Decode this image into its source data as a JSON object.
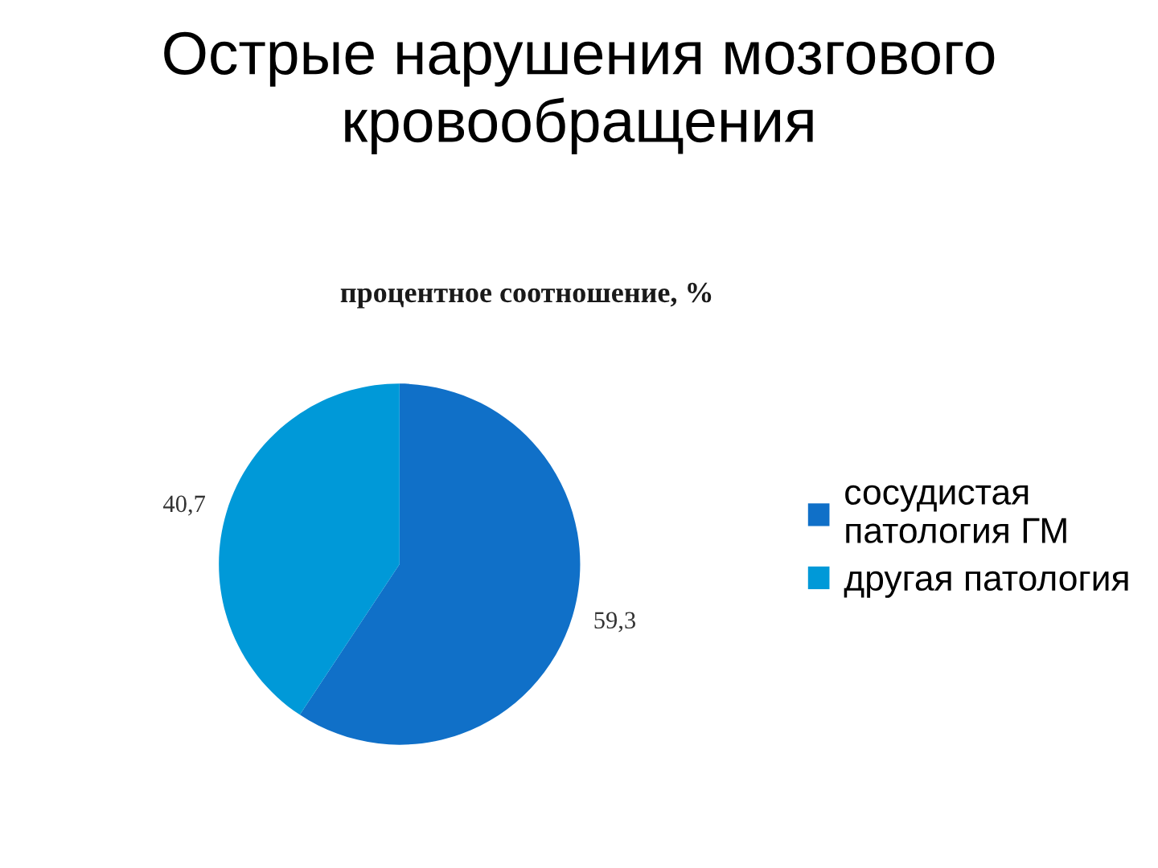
{
  "chart_data": {
    "type": "pie",
    "title": "Острые нарушения мозгового кровообращения",
    "subtitle": "процентное соотношение, %",
    "categories": [
      "сосудистая патология ГМ",
      "другая патология"
    ],
    "values": [
      59.3,
      40.7
    ],
    "value_labels": [
      "59,3",
      "40,7"
    ],
    "colors": [
      "#1070c8",
      "#0099d8"
    ],
    "legend": "right"
  }
}
